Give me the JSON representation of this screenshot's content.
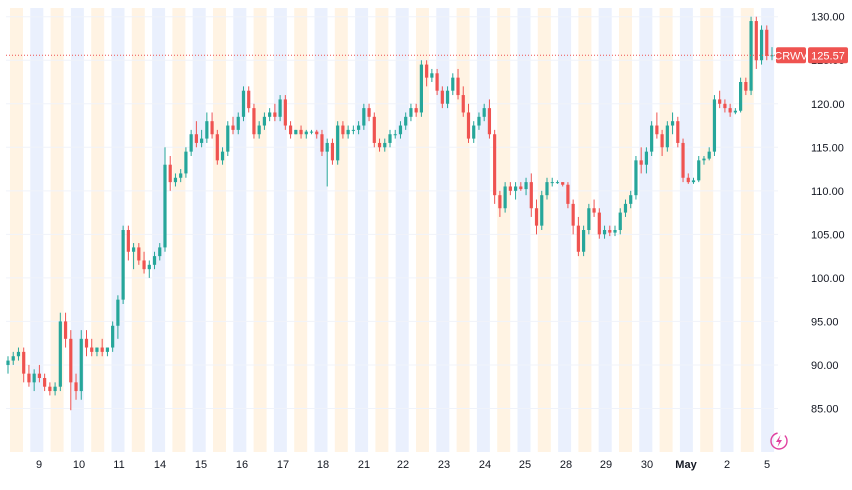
{
  "colors": {
    "up": "#26a69a",
    "down": "#ef5350",
    "premarket_band": "#fff3e3",
    "afterhours_band": "#eaf0fd",
    "grid": "#f0f3fa",
    "axis_text": "#131722",
    "last_price_line": "#ef5350",
    "ticker_tag_bg": "#ef5350",
    "price_tag_bg": "#ef5350"
  },
  "last_price": {
    "ticker": "CRWV",
    "value_label": "125.57",
    "value": 125.57
  },
  "icons": {
    "corner": "lightning-bolt-icon"
  },
  "chart_data": {
    "type": "candlestick",
    "title": "",
    "ylim": [
      80,
      131
    ],
    "y_ticks": [
      "130.00",
      "125.00",
      "120.00",
      "115.00",
      "110.00",
      "105.00",
      "100.00",
      "95.00",
      "90.00",
      "85.00"
    ],
    "y_tick_values": [
      130,
      125,
      120,
      115,
      110,
      105,
      100,
      95,
      90,
      85
    ],
    "x_ticks": [
      "9",
      "10",
      "11",
      "14",
      "15",
      "16",
      "17",
      "18",
      "21",
      "22",
      "23",
      "24",
      "25",
      "28",
      "29",
      "30",
      "May",
      "2",
      "5"
    ],
    "x_tick_bold": [
      false,
      false,
      false,
      false,
      false,
      false,
      false,
      false,
      false,
      false,
      false,
      false,
      false,
      false,
      false,
      false,
      true,
      false,
      false
    ],
    "bands": "alternating pre-market and after-hours sessions",
    "grid": true,
    "ohlc": [
      [
        90,
        91,
        89,
        90.5
      ],
      [
        90.5,
        91.5,
        90,
        91
      ],
      [
        91,
        92,
        90.5,
        91.5
      ],
      [
        91.5,
        92,
        88,
        89
      ],
      [
        89,
        90,
        87.5,
        88
      ],
      [
        88,
        89.5,
        87,
        89
      ],
      [
        89,
        90,
        88,
        88.5
      ],
      [
        88.5,
        89,
        87,
        87.5
      ],
      [
        87.5,
        88,
        86.5,
        87
      ],
      [
        87,
        88,
        86.5,
        87.5
      ],
      [
        87.5,
        96,
        87,
        95
      ],
      [
        95,
        96,
        92,
        93
      ],
      [
        93,
        94,
        84.8,
        88
      ],
      [
        88,
        89,
        86,
        87
      ],
      [
        87,
        94,
        86,
        93
      ],
      [
        93,
        94,
        91,
        92
      ],
      [
        92,
        93,
        91,
        91.5
      ],
      [
        91.5,
        92,
        91,
        92
      ],
      [
        92,
        93,
        91,
        91.5
      ],
      [
        91.5,
        92,
        91,
        92
      ],
      [
        92,
        95,
        91.5,
        94.5
      ],
      [
        94.5,
        98,
        93,
        97.5
      ],
      [
        97.5,
        106,
        97,
        105.5
      ],
      [
        105.5,
        106,
        102,
        103
      ],
      [
        103,
        104,
        101,
        103.5
      ],
      [
        103.5,
        104,
        101.5,
        102
      ],
      [
        102,
        103,
        100.5,
        101
      ],
      [
        101,
        102,
        100,
        101.5
      ],
      [
        101.5,
        103,
        101,
        102.5
      ],
      [
        102.5,
        104,
        102,
        103.5
      ],
      [
        103.5,
        115,
        103,
        113
      ],
      [
        113,
        114,
        110,
        111
      ],
      [
        111,
        112,
        110.5,
        111.5
      ],
      [
        111.5,
        112.5,
        111,
        112
      ],
      [
        112,
        115,
        111.5,
        114.5
      ],
      [
        114.5,
        117,
        114,
        116.5
      ],
      [
        116.5,
        118,
        115,
        115.5
      ],
      [
        115.5,
        117,
        115,
        116
      ],
      [
        116,
        119,
        115.5,
        118
      ],
      [
        118,
        119,
        116,
        116.5
      ],
      [
        116.5,
        117,
        113,
        113.5
      ],
      [
        113.5,
        115,
        113,
        114.5
      ],
      [
        114.5,
        118,
        114,
        117.5
      ],
      [
        117.5,
        118.5,
        116.5,
        117
      ],
      [
        117,
        119,
        116.5,
        118.5
      ],
      [
        118.5,
        122,
        118,
        121.5
      ],
      [
        121.5,
        122,
        119,
        119.5
      ],
      [
        119.5,
        120,
        116,
        116.5
      ],
      [
        116.5,
        118,
        116,
        117.5
      ],
      [
        117.5,
        119,
        117,
        118.5
      ],
      [
        118.5,
        119.5,
        118,
        119
      ],
      [
        119,
        120,
        118,
        118.5
      ],
      [
        118.5,
        121,
        118,
        120.5
      ],
      [
        120.5,
        121,
        117,
        117.5
      ],
      [
        117.5,
        118,
        116,
        116.5
      ],
      [
        116.5,
        117,
        116.5,
        117
      ],
      [
        117,
        117.5,
        116,
        116.5
      ],
      [
        116.5,
        117,
        116,
        116.8
      ],
      [
        116.8,
        117,
        116.5,
        116.8
      ],
      [
        116.8,
        117,
        116,
        116.5
      ],
      [
        116.5,
        117,
        114,
        114.5
      ],
      [
        114.5,
        116,
        110.5,
        115.5
      ],
      [
        115.5,
        116,
        113,
        113.5
      ],
      [
        113.5,
        118,
        113,
        117.5
      ],
      [
        117.5,
        118,
        116,
        116.5
      ],
      [
        116.5,
        117.5,
        116,
        117
      ],
      [
        117,
        117.5,
        116.5,
        117
      ],
      [
        117,
        118,
        116.5,
        117.5
      ],
      [
        117.5,
        120,
        117,
        119.5
      ],
      [
        119.5,
        120,
        118,
        118.5
      ],
      [
        118.5,
        119,
        115,
        115.5
      ],
      [
        115.5,
        116,
        114.5,
        115
      ],
      [
        115,
        116,
        114.5,
        115.5
      ],
      [
        115.5,
        117,
        115,
        116.5
      ],
      [
        116.5,
        117,
        116,
        116.5
      ],
      [
        116.5,
        118,
        116,
        117.5
      ],
      [
        117.5,
        119,
        117,
        118.5
      ],
      [
        118.5,
        120,
        118,
        119.5
      ],
      [
        119.5,
        120,
        118.5,
        119
      ],
      [
        119,
        125,
        118.5,
        124.5
      ],
      [
        124.5,
        125,
        122,
        123
      ],
      [
        123,
        124,
        122.5,
        123.5
      ],
      [
        123.5,
        124,
        121,
        121.5
      ],
      [
        121.5,
        122,
        119.5,
        120
      ],
      [
        120,
        122,
        119.5,
        121.5
      ],
      [
        121.5,
        123.5,
        121,
        123
      ],
      [
        123,
        124,
        120.5,
        121
      ],
      [
        121,
        122,
        118.5,
        119
      ],
      [
        119,
        120,
        115.5,
        116
      ],
      [
        116,
        118,
        115.5,
        117.5
      ],
      [
        117.5,
        119,
        117,
        118.5
      ],
      [
        118.5,
        120,
        118,
        119.5
      ],
      [
        119.5,
        120.5,
        116,
        116.5
      ],
      [
        116.5,
        117,
        108.5,
        109.5
      ],
      [
        109.5,
        110,
        107,
        108
      ],
      [
        108,
        111,
        107.5,
        110.5
      ],
      [
        110.5,
        111,
        109.5,
        110
      ],
      [
        110,
        111,
        109,
        110.5
      ],
      [
        110.5,
        111,
        110,
        110.2
      ],
      [
        110.2,
        111.5,
        109.5,
        111
      ],
      [
        111,
        112,
        107,
        108
      ],
      [
        108,
        109,
        105,
        106
      ],
      [
        106,
        110,
        105.5,
        109.5
      ],
      [
        109.5,
        111.5,
        109,
        111
      ],
      [
        111,
        111.5,
        110.5,
        111
      ],
      [
        111,
        111.2,
        110.8,
        111
      ],
      [
        111,
        111,
        110.5,
        110.7
      ],
      [
        110.7,
        111,
        108,
        108.5
      ],
      [
        108.5,
        109,
        105,
        106
      ],
      [
        106,
        107,
        102.5,
        103
      ],
      [
        103,
        106,
        102.5,
        105.5
      ],
      [
        105.5,
        108.5,
        105,
        108
      ],
      [
        108,
        109,
        107,
        107.5
      ],
      [
        107.5,
        108,
        104.5,
        105
      ],
      [
        105,
        106,
        104.5,
        105.5
      ],
      [
        105.5,
        106,
        104.8,
        105.2
      ],
      [
        105.2,
        106,
        104.8,
        105.5
      ],
      [
        105.5,
        108,
        105,
        107.5
      ],
      [
        107.5,
        109,
        107,
        108.5
      ],
      [
        108.5,
        110,
        108,
        109.5
      ],
      [
        109.5,
        114,
        109,
        113.5
      ],
      [
        113.5,
        115,
        112,
        113
      ],
      [
        113,
        115,
        112,
        114.5
      ],
      [
        114.5,
        118,
        114,
        117.5
      ],
      [
        117.5,
        119,
        116,
        116.5
      ],
      [
        116.5,
        117,
        114,
        115
      ],
      [
        115,
        118,
        114.5,
        117.5
      ],
      [
        117.5,
        119,
        116.5,
        118
      ],
      [
        118,
        118.5,
        115,
        115.5
      ],
      [
        115.5,
        116,
        111,
        111.5
      ],
      [
        111.5,
        112,
        110.8,
        111
      ],
      [
        111,
        111.5,
        110.8,
        111.2
      ],
      [
        111.2,
        114,
        111,
        113.5
      ],
      [
        113.5,
        114,
        113,
        113.7
      ],
      [
        113.7,
        115,
        113.5,
        114.5
      ],
      [
        114.5,
        121,
        114,
        120.5
      ],
      [
        120.5,
        121.5,
        119.5,
        120
      ],
      [
        120,
        120.5,
        119,
        119.5
      ],
      [
        119.5,
        120,
        118.5,
        119
      ],
      [
        119,
        119.5,
        118.8,
        119.2
      ],
      [
        119.2,
        123,
        119,
        122.5
      ],
      [
        122.5,
        123,
        121,
        121.5
      ],
      [
        121.5,
        130,
        121,
        129.5
      ],
      [
        129.5,
        130,
        124,
        125
      ],
      [
        125,
        129,
        124.5,
        128.5
      ],
      [
        128.5,
        129,
        125,
        125.5
      ],
      [
        125.5,
        126.5,
        125,
        125.57
      ]
    ]
  }
}
